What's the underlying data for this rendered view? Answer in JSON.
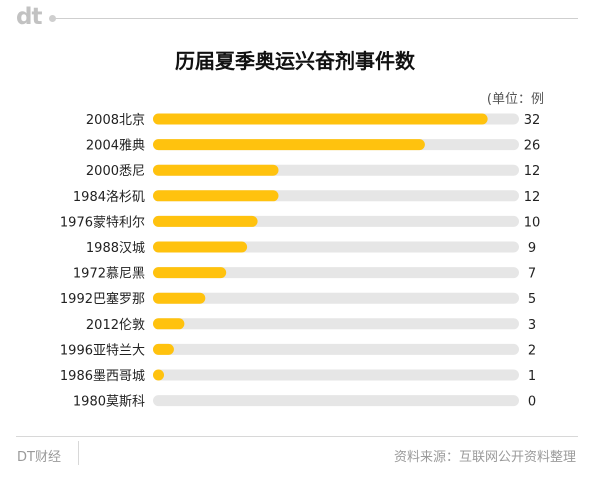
{
  "brand": {
    "logo": "dt",
    "footer_left": "DT财经"
  },
  "source": "资料来源：互联网公开资料整理",
  "chart_data": {
    "type": "bar",
    "orientation": "horizontal",
    "title": "历届夏季奥运兴奋剂事件数",
    "unit": "(单位：例",
    "categories": [
      "2008北京",
      "2004雅典",
      "2000悉尼",
      "1984洛杉矶",
      "1976蒙特利尔",
      "1988汉城",
      "1972慕尼黑",
      "1992巴塞罗那",
      "2012伦敦",
      "1996亚特兰大",
      "1986墨西哥城",
      "1980莫斯科"
    ],
    "values": [
      32,
      26,
      12,
      12,
      10,
      9,
      7,
      5,
      3,
      2,
      1,
      0
    ],
    "xlim": [
      0,
      35
    ],
    "bar_color": "#ffc20e",
    "track_color": "#e6e6e6"
  }
}
